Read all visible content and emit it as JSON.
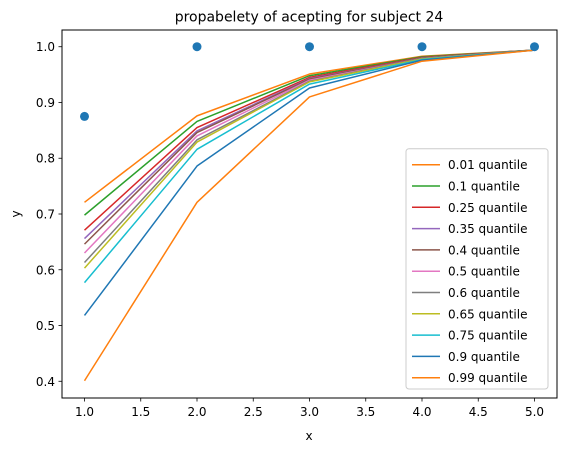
{
  "chart_data": {
    "type": "line",
    "title": "propabelety of acepting for subject 24",
    "xlabel": "x",
    "ylabel": "y",
    "x": [
      1,
      2,
      3,
      4,
      5
    ],
    "xlim": [
      0.8,
      5.2
    ],
    "ylim": [
      0.37,
      1.03
    ],
    "xticks": [
      1.0,
      1.5,
      2.0,
      2.5,
      3.0,
      3.5,
      4.0,
      4.5,
      5.0
    ],
    "xtick_labels": [
      "1.0",
      "1.5",
      "2.0",
      "2.5",
      "3.0",
      "3.5",
      "4.0",
      "4.5",
      "5.0"
    ],
    "yticks": [
      0.4,
      0.5,
      0.6,
      0.7,
      0.8,
      0.9,
      1.0
    ],
    "ytick_labels": [
      "0.4",
      "0.5",
      "0.6",
      "0.7",
      "0.8",
      "0.9",
      "1.0"
    ],
    "grid": false,
    "legend_position": "lower-right",
    "scatter": {
      "color": "#1f77b4",
      "x": [
        1,
        2,
        3,
        4,
        5
      ],
      "y": [
        0.875,
        1.0,
        1.0,
        1.0,
        1.0
      ]
    },
    "series": [
      {
        "name": "0.01 quantile",
        "color": "#ff7f0e",
        "values": [
          0.721,
          0.876,
          0.951,
          0.983,
          0.994
        ]
      },
      {
        "name": "0.1 quantile",
        "color": "#2ca02c",
        "values": [
          0.698,
          0.866,
          0.948,
          0.982,
          0.994
        ]
      },
      {
        "name": "0.25 quantile",
        "color": "#d62728",
        "values": [
          0.671,
          0.855,
          0.945,
          0.981,
          0.994
        ]
      },
      {
        "name": "0.35 quantile",
        "color": "#9467bd",
        "values": [
          0.656,
          0.849,
          0.943,
          0.98,
          0.994
        ]
      },
      {
        "name": "0.4 quantile",
        "color": "#8c564b",
        "values": [
          0.646,
          0.846,
          0.942,
          0.98,
          0.994
        ]
      },
      {
        "name": "0.5 quantile",
        "color": "#e377c2",
        "values": [
          0.63,
          0.84,
          0.94,
          0.979,
          0.994
        ]
      },
      {
        "name": "0.6 quantile",
        "color": "#7f7f7f",
        "values": [
          0.613,
          0.833,
          0.938,
          0.979,
          0.994
        ]
      },
      {
        "name": "0.65 quantile",
        "color": "#bcbd22",
        "values": [
          0.603,
          0.829,
          0.937,
          0.978,
          0.994
        ]
      },
      {
        "name": "0.75 quantile",
        "color": "#17becf",
        "values": [
          0.577,
          0.816,
          0.933,
          0.977,
          0.994
        ]
      },
      {
        "name": "0.9 quantile",
        "color": "#1f77b4",
        "values": [
          0.518,
          0.786,
          0.926,
          0.976,
          0.994
        ]
      },
      {
        "name": "0.99 quantile",
        "color": "#ff7f0e",
        "values": [
          0.401,
          0.721,
          0.91,
          0.974,
          0.994
        ]
      }
    ]
  }
}
